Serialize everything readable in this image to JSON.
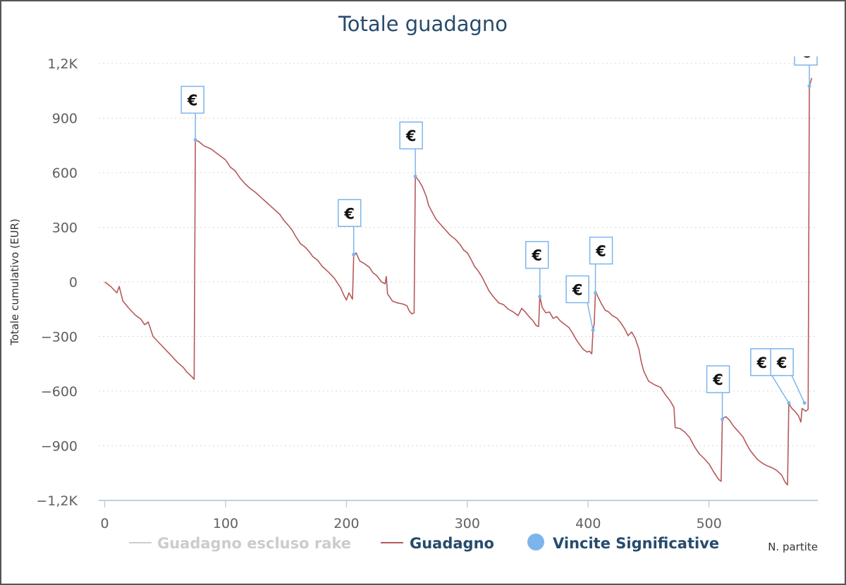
{
  "chart_data": {
    "type": "line",
    "title": "Totale guadagno",
    "xlabel": "N. partite",
    "ylabel": "Totale cumulativo (EUR)",
    "xlim": [
      -5,
      590
    ],
    "ylim": [
      -1200,
      1200
    ],
    "x_ticks": [
      0,
      100,
      200,
      300,
      400,
      500
    ],
    "y_ticks": [
      1200,
      900,
      600,
      300,
      0,
      -300,
      -600,
      -900,
      -1200
    ],
    "y_tick_labels": [
      "1,2K",
      "900",
      "600",
      "300",
      "0",
      "−300",
      "−600",
      "−900",
      "−1,2K"
    ],
    "grid": "horizontal-dotted",
    "legend_position": "bottom",
    "legend": [
      {
        "label": "Guadagno escluso rake",
        "state": "hidden"
      },
      {
        "label": "Guadagno",
        "state": "visible"
      },
      {
        "label": "Vincite Significative",
        "state": "visible"
      }
    ],
    "series": [
      {
        "name": "Guadagno",
        "color": "#b5595a",
        "points": [
          [
            0,
            0
          ],
          [
            5,
            -25
          ],
          [
            10,
            -60
          ],
          [
            12,
            -25
          ],
          [
            15,
            -105
          ],
          [
            20,
            -145
          ],
          [
            25,
            -180
          ],
          [
            30,
            -205
          ],
          [
            33,
            -235
          ],
          [
            36,
            -220
          ],
          [
            40,
            -300
          ],
          [
            45,
            -335
          ],
          [
            50,
            -370
          ],
          [
            55,
            -405
          ],
          [
            60,
            -440
          ],
          [
            65,
            -470
          ],
          [
            68,
            -495
          ],
          [
            72,
            -520
          ],
          [
            74,
            -535
          ],
          [
            75,
            780
          ],
          [
            78,
            770
          ],
          [
            82,
            748
          ],
          [
            88,
            730
          ],
          [
            92,
            710
          ],
          [
            96,
            690
          ],
          [
            100,
            670
          ],
          [
            104,
            630
          ],
          [
            108,
            610
          ],
          [
            112,
            570
          ],
          [
            116,
            540
          ],
          [
            120,
            515
          ],
          [
            125,
            490
          ],
          [
            130,
            460
          ],
          [
            135,
            430
          ],
          [
            140,
            400
          ],
          [
            145,
            370
          ],
          [
            148,
            340
          ],
          [
            152,
            310
          ],
          [
            155,
            285
          ],
          [
            158,
            250
          ],
          [
            162,
            210
          ],
          [
            166,
            190
          ],
          [
            170,
            160
          ],
          [
            172,
            140
          ],
          [
            176,
            120
          ],
          [
            180,
            85
          ],
          [
            185,
            55
          ],
          [
            190,
            20
          ],
          [
            195,
            -30
          ],
          [
            198,
            -75
          ],
          [
            200,
            -100
          ],
          [
            202,
            -60
          ],
          [
            205,
            -95
          ],
          [
            206,
            145
          ],
          [
            208,
            160
          ],
          [
            211,
            115
          ],
          [
            215,
            100
          ],
          [
            219,
            80
          ],
          [
            222,
            50
          ],
          [
            225,
            35
          ],
          [
            229,
            0
          ],
          [
            232,
            -10
          ],
          [
            233,
            30
          ],
          [
            234,
            -65
          ],
          [
            238,
            -105
          ],
          [
            242,
            -115
          ],
          [
            246,
            -120
          ],
          [
            250,
            -130
          ],
          [
            252,
            -160
          ],
          [
            254,
            -175
          ],
          [
            256,
            -170
          ],
          [
            257,
            580
          ],
          [
            260,
            555
          ],
          [
            263,
            520
          ],
          [
            266,
            470
          ],
          [
            268,
            420
          ],
          [
            270,
            395
          ],
          [
            274,
            345
          ],
          [
            278,
            315
          ],
          [
            282,
            285
          ],
          [
            286,
            255
          ],
          [
            290,
            235
          ],
          [
            294,
            205
          ],
          [
            297,
            175
          ],
          [
            300,
            160
          ],
          [
            303,
            125
          ],
          [
            306,
            85
          ],
          [
            309,
            60
          ],
          [
            312,
            30
          ],
          [
            315,
            -10
          ],
          [
            318,
            -50
          ],
          [
            322,
            -85
          ],
          [
            326,
            -115
          ],
          [
            330,
            -125
          ],
          [
            334,
            -150
          ],
          [
            338,
            -165
          ],
          [
            342,
            -185
          ],
          [
            345,
            -145
          ],
          [
            348,
            -165
          ],
          [
            351,
            -190
          ],
          [
            354,
            -210
          ],
          [
            357,
            -240
          ],
          [
            359,
            -245
          ],
          [
            360,
            -80
          ],
          [
            362,
            -140
          ],
          [
            365,
            -170
          ],
          [
            368,
            -165
          ],
          [
            371,
            -200
          ],
          [
            374,
            -190
          ],
          [
            377,
            -215
          ],
          [
            380,
            -230
          ],
          [
            384,
            -250
          ],
          [
            387,
            -280
          ],
          [
            390,
            -315
          ],
          [
            393,
            -345
          ],
          [
            396,
            -370
          ],
          [
            399,
            -385
          ],
          [
            401,
            -380
          ],
          [
            403,
            -395
          ],
          [
            404,
            -265
          ],
          [
            405,
            -230
          ],
          [
            406,
            -50
          ],
          [
            408,
            -80
          ],
          [
            411,
            -120
          ],
          [
            414,
            -155
          ],
          [
            417,
            -165
          ],
          [
            420,
            -185
          ],
          [
            424,
            -200
          ],
          [
            427,
            -225
          ],
          [
            430,
            -255
          ],
          [
            433,
            -295
          ],
          [
            436,
            -275
          ],
          [
            439,
            -310
          ],
          [
            442,
            -370
          ],
          [
            444,
            -440
          ],
          [
            446,
            -490
          ],
          [
            450,
            -545
          ],
          [
            455,
            -565
          ],
          [
            460,
            -580
          ],
          [
            464,
            -620
          ],
          [
            468,
            -655
          ],
          [
            471,
            -690
          ],
          [
            472,
            -800
          ],
          [
            476,
            -805
          ],
          [
            480,
            -825
          ],
          [
            484,
            -855
          ],
          [
            488,
            -905
          ],
          [
            492,
            -945
          ],
          [
            496,
            -970
          ],
          [
            500,
            -1000
          ],
          [
            504,
            -1045
          ],
          [
            508,
            -1085
          ],
          [
            510,
            -1095
          ],
          [
            511,
            -750
          ],
          [
            514,
            -740
          ],
          [
            517,
            -760
          ],
          [
            520,
            -790
          ],
          [
            524,
            -820
          ],
          [
            528,
            -850
          ],
          [
            531,
            -890
          ],
          [
            534,
            -925
          ],
          [
            537,
            -950
          ],
          [
            540,
            -975
          ],
          [
            544,
            -995
          ],
          [
            548,
            -1010
          ],
          [
            552,
            -1020
          ],
          [
            556,
            -1035
          ],
          [
            560,
            -1060
          ],
          [
            563,
            -1100
          ],
          [
            565,
            -1115
          ],
          [
            566,
            -665
          ],
          [
            568,
            -690
          ],
          [
            571,
            -710
          ],
          [
            574,
            -735
          ],
          [
            576,
            -770
          ],
          [
            577,
            -695
          ],
          [
            580,
            -710
          ],
          [
            582,
            -700
          ],
          [
            583,
            1075
          ],
          [
            585,
            1120
          ]
        ]
      }
    ],
    "markers": [
      {
        "x": 75,
        "y": 780,
        "label": "€"
      },
      {
        "x": 206,
        "y": 150,
        "label": "€"
      },
      {
        "x": 257,
        "y": 580,
        "label": "€"
      },
      {
        "x": 360,
        "y": -80,
        "label": "€"
      },
      {
        "x": 404,
        "y": -265,
        "label": "€"
      },
      {
        "x": 406,
        "y": -60,
        "label": "€"
      },
      {
        "x": 511,
        "y": -755,
        "label": "€"
      },
      {
        "x": 566,
        "y": -665,
        "label": "€"
      },
      {
        "x": 579,
        "y": -665,
        "label": "€"
      },
      {
        "x": 583,
        "y": 1075,
        "label": "€"
      }
    ]
  },
  "colors": {
    "title": "#274b6d",
    "axis_text": "#606060",
    "grid": "#d8d8d8",
    "line": "#b5595a",
    "marker": "#7cb5ec",
    "legend_active": "#274b6d",
    "legend_hidden": "#cccccc"
  }
}
